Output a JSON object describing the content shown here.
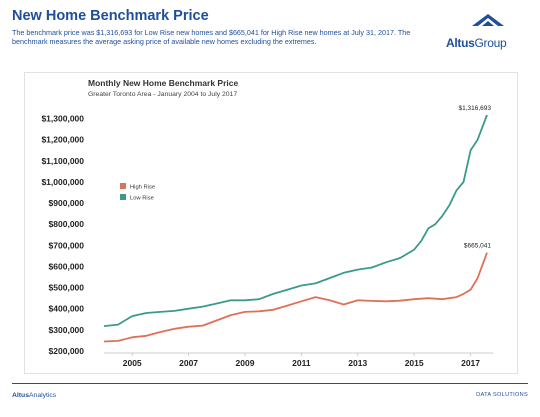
{
  "header": {
    "title": "New Home Benchmark Price",
    "description": "The benchmark price was $1,316,693 for Low Rise new homes and $665,041 for High Rise new homes at July 31, 2017. The benchmark measures the average asking price of available new homes excluding the extremes."
  },
  "logo": {
    "name_bold": "Altus",
    "name_light": "Group",
    "icon": "triangle-roof-icon",
    "color": "#1f4e9a"
  },
  "footer": {
    "brand_bold": "Altus",
    "brand_light": "Analytics",
    "right_label": "DATA SOLUTIONS"
  },
  "chart_data": {
    "type": "line",
    "title": "Monthly New Home Benchmark Price",
    "subtitle": "Greater Toronto Area - January 2004 to July 2017",
    "xlabel": "",
    "ylabel": "",
    "xlim": [
      2004.0,
      2017.583
    ],
    "ylim": [
      200000,
      1350000
    ],
    "x_ticks": [
      2005,
      2007,
      2009,
      2011,
      2013,
      2015,
      2017
    ],
    "y_ticks": [
      200000,
      300000,
      400000,
      500000,
      600000,
      700000,
      800000,
      900000,
      1000000,
      1100000,
      1200000,
      1300000
    ],
    "y_tick_labels": [
      "$200,000",
      "$300,000",
      "$400,000",
      "$500,000",
      "$600,000",
      "$700,000",
      "$800,000",
      "$900,000",
      "$1,000,000",
      "$1,100,000",
      "$1,200,000",
      "$1,300,000"
    ],
    "grid": false,
    "legend": "left",
    "series": [
      {
        "name": "High Rise",
        "color": "#e07058",
        "x": [
          2004.0,
          2004.5,
          2005.0,
          2005.5,
          2006.0,
          2006.5,
          2007.0,
          2007.5,
          2008.0,
          2008.5,
          2009.0,
          2009.5,
          2010.0,
          2010.5,
          2011.0,
          2011.5,
          2012.0,
          2012.5,
          2013.0,
          2013.5,
          2014.0,
          2014.5,
          2015.0,
          2015.5,
          2016.0,
          2016.5,
          2016.75,
          2017.0,
          2017.25,
          2017.583
        ],
        "values": [
          245000,
          248000,
          265000,
          272000,
          290000,
          305000,
          315000,
          320000,
          345000,
          370000,
          385000,
          388000,
          395000,
          415000,
          435000,
          455000,
          440000,
          420000,
          440000,
          437000,
          435000,
          438000,
          445000,
          450000,
          445000,
          455000,
          470000,
          490000,
          545000,
          665041
        ]
      },
      {
        "name": "Low Rise",
        "color": "#3a9a8c",
        "x": [
          2004.0,
          2004.5,
          2005.0,
          2005.5,
          2006.0,
          2006.5,
          2007.0,
          2007.5,
          2008.0,
          2008.5,
          2009.0,
          2009.5,
          2010.0,
          2010.5,
          2011.0,
          2011.5,
          2012.0,
          2012.5,
          2013.0,
          2013.5,
          2014.0,
          2014.5,
          2015.0,
          2015.25,
          2015.5,
          2015.75,
          2016.0,
          2016.25,
          2016.5,
          2016.75,
          2017.0,
          2017.25,
          2017.583
        ],
        "values": [
          318000,
          325000,
          365000,
          380000,
          385000,
          390000,
          400000,
          410000,
          425000,
          440000,
          440000,
          445000,
          470000,
          490000,
          510000,
          520000,
          545000,
          570000,
          585000,
          595000,
          620000,
          640000,
          680000,
          720000,
          780000,
          800000,
          840000,
          890000,
          960000,
          1000000,
          1150000,
          1200000,
          1316693
        ]
      }
    ],
    "annotations": [
      {
        "text": "$1,316,693",
        "x": 2017.583,
        "y": 1316693
      },
      {
        "text": "$665,041",
        "x": 2017.583,
        "y": 665041
      }
    ]
  }
}
